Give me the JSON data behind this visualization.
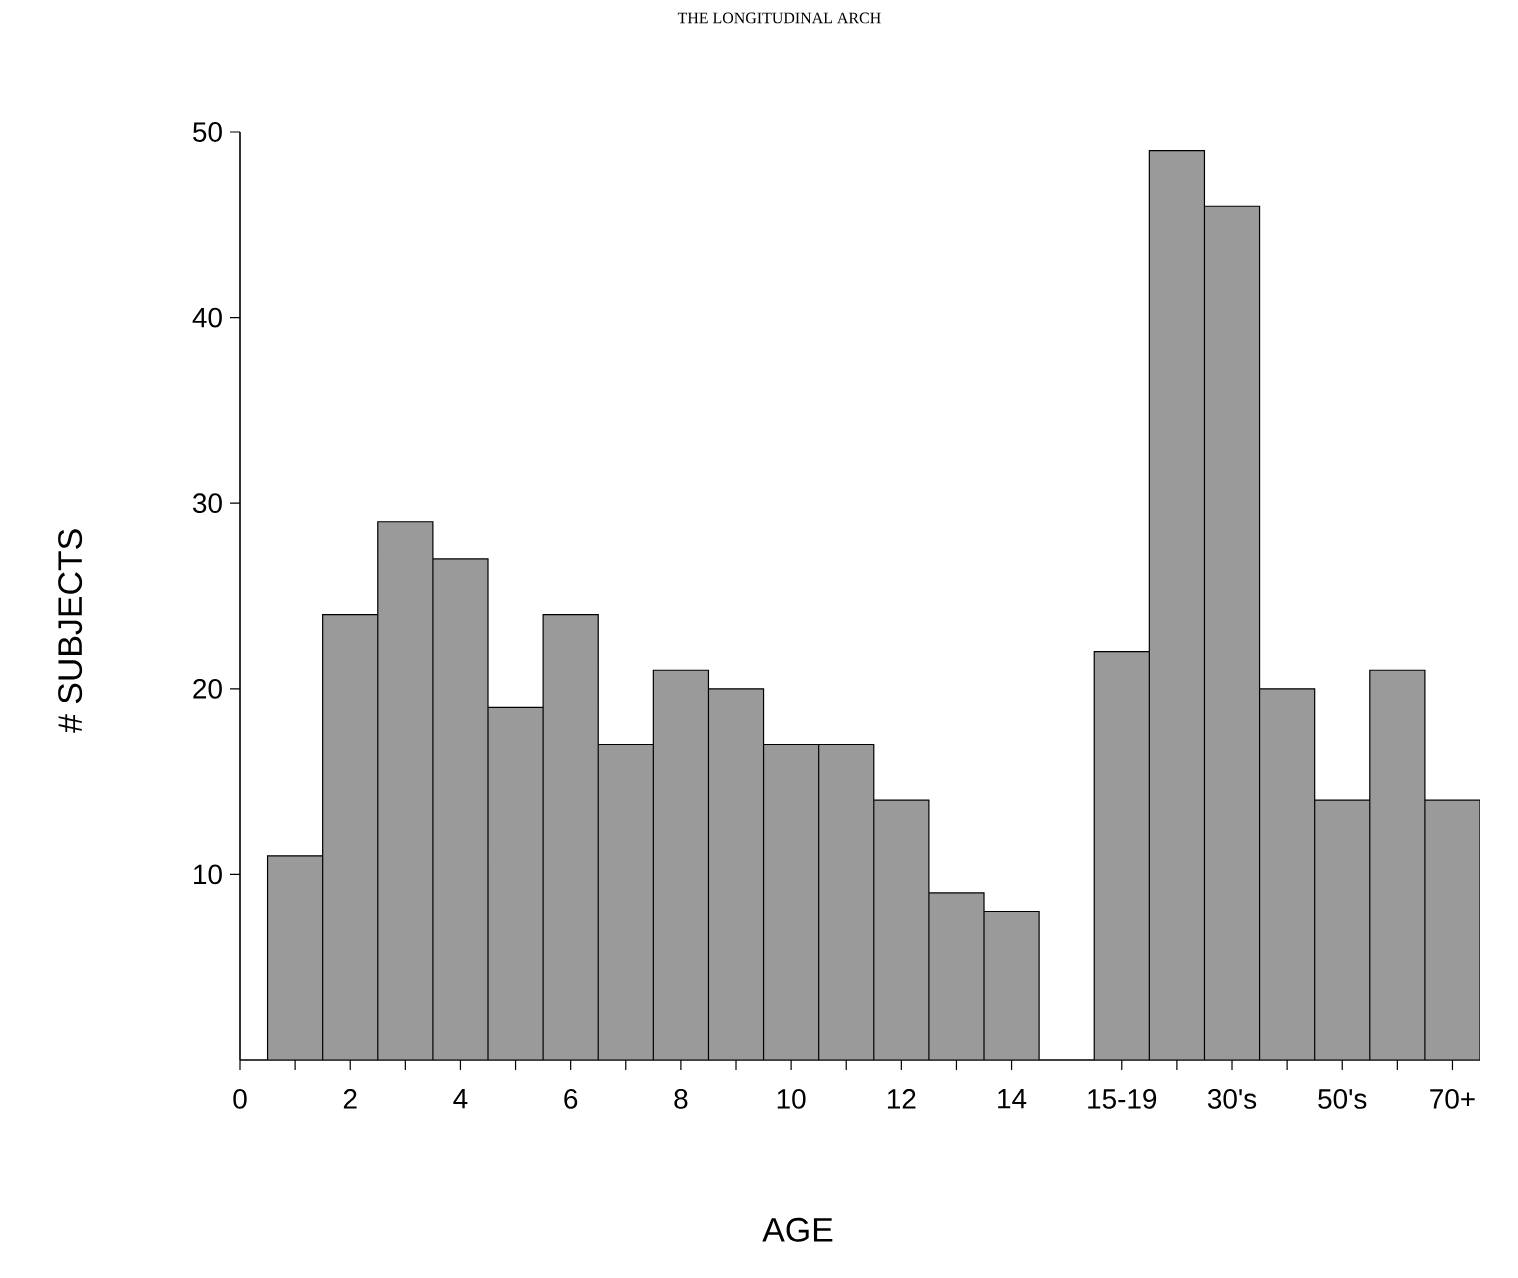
{
  "chart_data": {
    "type": "bar",
    "title": "THE LONGITUDINAL ARCH",
    "xlabel": "AGE",
    "ylabel": "# SUBJECTS",
    "categories": [
      "0",
      null,
      "2",
      null,
      "4",
      null,
      "6",
      null,
      "8",
      null,
      "10",
      null,
      "12",
      null,
      "14",
      null,
      "15-19",
      null,
      "30's",
      null,
      "50's",
      null,
      "70+"
    ],
    "values": [
      null,
      11,
      24,
      29,
      27,
      19,
      24,
      17,
      21,
      20,
      17,
      17,
      14,
      9,
      8,
      null,
      22,
      49,
      46,
      20,
      14,
      21,
      14
    ],
    "color": "#9a9a9a",
    "ylim": [
      0,
      50
    ],
    "yticks": [
      10,
      20,
      30,
      40,
      50
    ]
  }
}
